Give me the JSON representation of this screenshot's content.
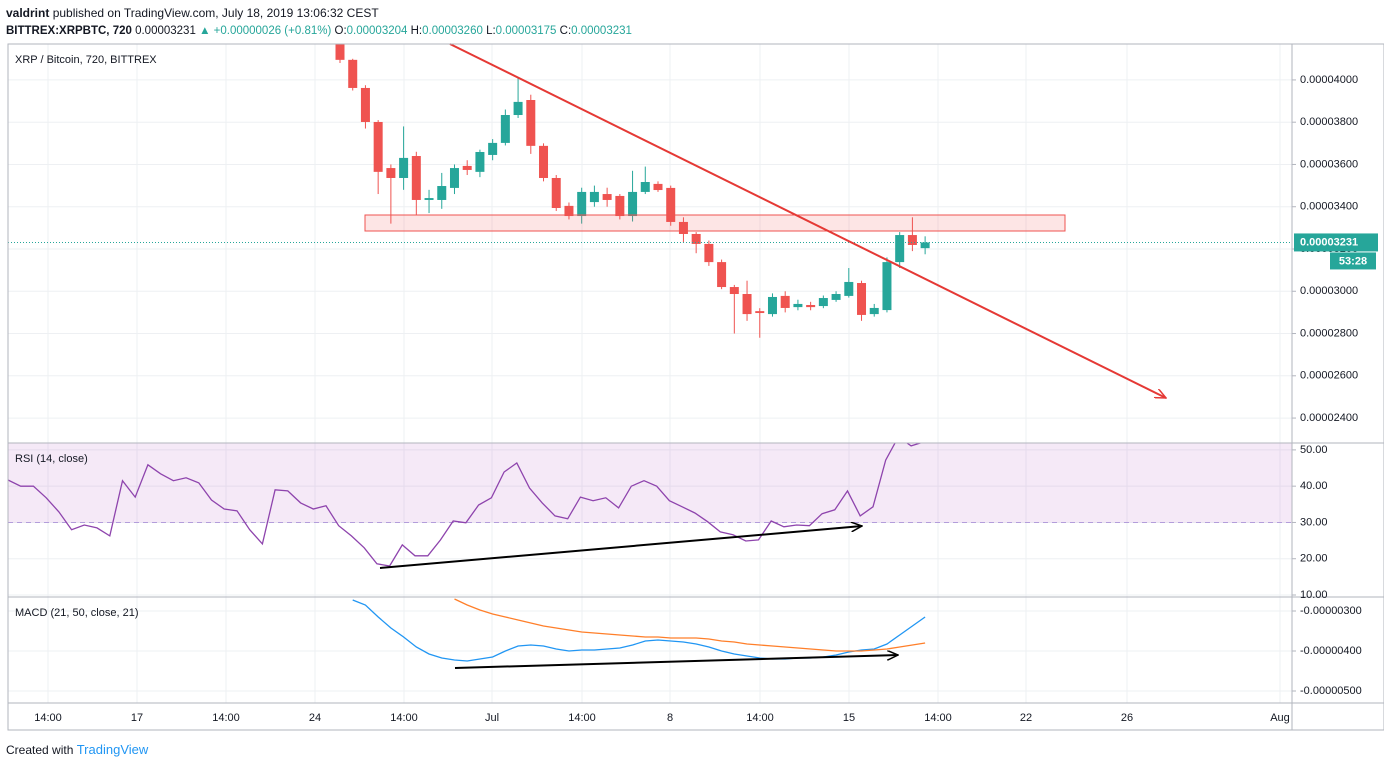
{
  "header": {
    "author": "valdrint",
    "published": "published on TradingView.com, July 18, 2019 13:06:32 CEST",
    "symbol": "BITTREX:XRPBTC, 720",
    "last": "0.00003231",
    "change": "▲ +0.00000026 (+0.81%)",
    "ohlc": [
      {
        "label": "O:",
        "value": "0.00003204"
      },
      {
        "label": "H:",
        "value": "0.00003260"
      },
      {
        "label": "L:",
        "value": "0.00003175"
      },
      {
        "label": "C:",
        "value": "0.00003231"
      }
    ]
  },
  "time_axis": [
    "14:00",
    "17",
    "14:00",
    "24",
    "14:00",
    "Jul",
    "14:00",
    "8",
    "14:00",
    "15",
    "14:00",
    "22",
    "26",
    "Aug"
  ],
  "footer": {
    "text": "Created with",
    "brand": "TradingView"
  },
  "chart_data": [
    {
      "type": "candlestick",
      "title": "XRP / Bitcoin, 720, BITTREX",
      "up_color": "#26a69a",
      "down_color": "#ef5350",
      "last_label": "0.00003231",
      "countdown": "53:28",
      "open": [
        4.17e-05,
        4.095e-05,
        3.962e-05,
        3.801e-05,
        3.583e-05,
        3.536e-05,
        3.64e-05,
        3.432e-05,
        3.432e-05,
        3.489e-05,
        3.593e-05,
        3.565e-05,
        3.645e-05,
        3.702e-05,
        3.834e-05,
        3.905e-05,
        3.688e-05,
        3.536e-05,
        3.404e-05,
        3.356e-05,
        3.422e-05,
        3.46e-05,
        3.451e-05,
        3.356e-05,
        3.47e-05,
        3.508e-05,
        3.489e-05,
        3.328e-05,
        3.271e-05,
        3.224e-05,
        3.138e-05,
        3.02e-05,
        2.987e-05,
        2.906e-05,
        2.892e-05,
        2.978e-05,
        2.925e-05,
        2.935e-05,
        2.93e-05,
        2.959e-05,
        2.978e-05,
        3.039e-05,
        2.892e-05,
        2.911e-05,
        3.138e-05,
        3.266e-05,
        3.204e-05
      ],
      "high": [
        4.18e-05,
        4.1e-05,
        3.975e-05,
        3.81e-05,
        3.6e-05,
        3.78e-05,
        3.66e-05,
        3.48e-05,
        3.56e-05,
        3.6e-05,
        3.62e-05,
        3.67e-05,
        3.72e-05,
        3.86e-05,
        4.01e-05,
        3.93e-05,
        3.7e-05,
        3.55e-05,
        3.42e-05,
        3.49e-05,
        3.5e-05,
        3.49e-05,
        3.46e-05,
        3.57e-05,
        3.59e-05,
        3.52e-05,
        3.5e-05,
        3.35e-05,
        3.28e-05,
        3.24e-05,
        3.15e-05,
        3.03e-05,
        3.05e-05,
        2.92e-05,
        2.99e-05,
        3e-05,
        2.96e-05,
        2.95e-05,
        2.98e-05,
        3e-05,
        3.11e-05,
        3.05e-05,
        2.94e-05,
        3.16e-05,
        3.28e-05,
        3.35e-05,
        3.26e-05
      ],
      "low": [
        4.08e-05,
        3.95e-05,
        3.77e-05,
        3.46e-05,
        3.32e-05,
        3.48e-05,
        3.36e-05,
        3.37e-05,
        3.39e-05,
        3.46e-05,
        3.55e-05,
        3.54e-05,
        3.62e-05,
        3.69e-05,
        3.82e-05,
        3.65e-05,
        3.52e-05,
        3.38e-05,
        3.34e-05,
        3.32e-05,
        3.4e-05,
        3.4e-05,
        3.34e-05,
        3.33e-05,
        3.46e-05,
        3.47e-05,
        3.31e-05,
        3.23e-05,
        3.18e-05,
        3.12e-05,
        3.01e-05,
        2.8e-05,
        2.86e-05,
        2.78e-05,
        2.88e-05,
        2.9e-05,
        2.91e-05,
        2.91e-05,
        2.92e-05,
        2.95e-05,
        2.97e-05,
        2.86e-05,
        2.88e-05,
        2.9e-05,
        3.11e-05,
        3.19e-05,
        3.175e-05
      ],
      "close": [
        4.095e-05,
        3.962e-05,
        3.801e-05,
        3.565e-05,
        3.536e-05,
        3.631e-05,
        3.432e-05,
        3.441e-05,
        3.498e-05,
        3.583e-05,
        3.574e-05,
        3.659e-05,
        3.702e-05,
        3.834e-05,
        3.896e-05,
        3.688e-05,
        3.536e-05,
        3.394e-05,
        3.356e-05,
        3.47e-05,
        3.47e-05,
        3.432e-05,
        3.356e-05,
        3.47e-05,
        3.517e-05,
        3.479e-05,
        3.328e-05,
        3.271e-05,
        3.224e-05,
        3.138e-05,
        3.02e-05,
        2.987e-05,
        2.892e-05,
        2.897e-05,
        2.973e-05,
        2.921e-05,
        2.94e-05,
        2.925e-05,
        2.968e-05,
        2.987e-05,
        3.044e-05,
        2.888e-05,
        2.921e-05,
        3.138e-05,
        3.266e-05,
        3.219e-05,
        3.231e-05
      ],
      "ylim": [
        2.282e-05,
        4.17e-05
      ],
      "yticks": [
        {
          "value": 2.4e-05,
          "label": "0.00002400"
        },
        {
          "value": 2.6e-05,
          "label": "0.00002600"
        },
        {
          "value": 2.8e-05,
          "label": "0.00002800"
        },
        {
          "value": 3e-05,
          "label": "0.00003000"
        },
        {
          "value": 3.2e-05,
          "label": "0.00003200"
        },
        {
          "value": 3.4e-05,
          "label": "0.00003400"
        },
        {
          "value": 3.6e-05,
          "label": "0.00003600"
        },
        {
          "value": 3.8e-05,
          "label": "0.00003800"
        },
        {
          "value": 4e-05,
          "label": "0.00004000"
        }
      ],
      "grid": true
    },
    {
      "type": "line",
      "title": "RSI (14, close)",
      "color": "#8e44ad",
      "values": [
        41.7,
        40,
        40,
        36.8,
        32.9,
        28,
        29.3,
        28.5,
        26.3,
        41.5,
        37,
        45.9,
        43.4,
        41.5,
        42.3,
        40.9,
        36.2,
        33.7,
        33.2,
        28,
        24.1,
        39,
        38.7,
        35.4,
        33.7,
        34.6,
        29.1,
        26.3,
        23,
        18.6,
        18,
        23.8,
        20.8,
        20.8,
        25.2,
        30.4,
        29.9,
        34.8,
        36.8,
        43.9,
        46.4,
        39.5,
        35.4,
        31.8,
        31,
        37,
        36,
        36.8,
        34,
        40,
        41.5,
        40,
        36,
        34.3,
        32.6,
        30.2,
        27.4,
        26.6,
        24.9,
        25.2,
        30.4,
        28.8,
        29.3,
        29.1,
        32.4,
        33.5,
        38.7,
        31.8,
        34.3,
        47.2,
        53.6,
        51.1,
        52.2
      ],
      "ylim": [
        9.45,
        51.9
      ],
      "yticks": [
        {
          "value": 10,
          "label": "10.00"
        },
        {
          "value": 20,
          "label": "20.00"
        },
        {
          "value": 30,
          "label": "30.00"
        },
        {
          "value": 40,
          "label": "40.00"
        },
        {
          "value": 50,
          "label": "50.00"
        }
      ]
    },
    {
      "type": "line",
      "title": "MACD (21, 50, close, 21)",
      "series": [
        {
          "color": "#2196f3",
          "values": [
            null,
            -2.725e-06,
            -2.85e-06,
            -3.15e-06,
            -3.425e-06,
            -3.65e-06,
            -3.9e-06,
            -4.075e-06,
            -4.175e-06,
            -4.225e-06,
            -4.25e-06,
            -4.2e-06,
            -4.15e-06,
            -4e-06,
            -3.875e-06,
            -3.85e-06,
            -3.875e-06,
            -3.95e-06,
            -4e-06,
            -3.975e-06,
            -3.975e-06,
            -3.95e-06,
            -3.925e-06,
            -3.85e-06,
            -3.75e-06,
            -3.725e-06,
            -3.75e-06,
            -3.775e-06,
            -3.825e-06,
            -3.9e-06,
            -4e-06,
            -4.075e-06,
            -4.125e-06,
            -4.175e-06,
            -4.2e-06,
            -4.2e-06,
            -4.175e-06,
            -4.175e-06,
            -4.15e-06,
            -4.1e-06,
            -4.025e-06,
            -3.975e-06,
            -3.95e-06,
            -3.825e-06,
            -3.6e-06,
            -3.375e-06,
            -3.15e-06
          ]
        },
        {
          "color": "#ff7f2a",
          "values": [
            null,
            null,
            null,
            null,
            null,
            null,
            null,
            null,
            null,
            -2.7e-06,
            -2.85e-06,
            -2.975e-06,
            -3.075e-06,
            -3.15e-06,
            -3.225e-06,
            -3.3e-06,
            -3.375e-06,
            -3.425e-06,
            -3.475e-06,
            -3.525e-06,
            -3.55e-06,
            -3.575e-06,
            -3.6e-06,
            -3.625e-06,
            -3.65e-06,
            -3.65e-06,
            -3.675e-06,
            -3.675e-06,
            -3.675e-06,
            -3.7e-06,
            -3.75e-06,
            -3.775e-06,
            -3.825e-06,
            -3.85e-06,
            -3.875e-06,
            -3.9e-06,
            -3.925e-06,
            -3.95e-06,
            -3.975e-06,
            -4e-06,
            -4e-06,
            -4e-06,
            -3.975e-06,
            -3.95e-06,
            -3.9e-06,
            -3.85e-06,
            -3.8e-06
          ]
        }
      ],
      "ylim": [
        -5.3e-06,
        -2.65e-06
      ],
      "yticks": [
        {
          "value": -5e-06,
          "label": "-0.00000500"
        },
        {
          "value": -4e-06,
          "label": "-0.00000400"
        },
        {
          "value": -3e-06,
          "label": "-0.00000300"
        }
      ]
    }
  ]
}
